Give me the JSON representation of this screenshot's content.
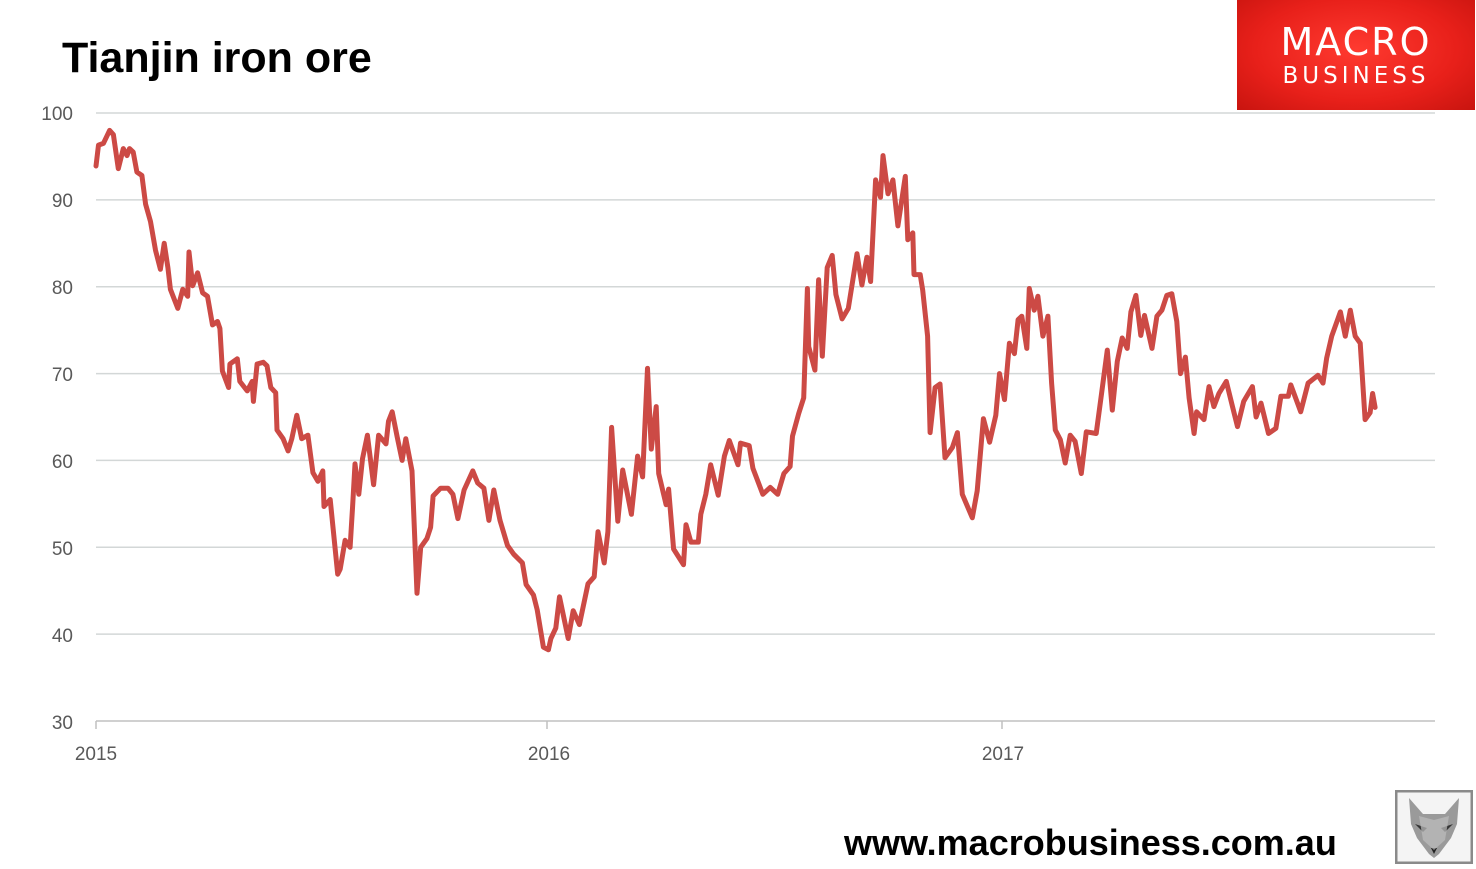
{
  "header": {
    "title": "Tianjin iron ore"
  },
  "logo": {
    "line1": "MACRO",
    "line2": "BUSINESS",
    "color": "#e8201a"
  },
  "footer": {
    "url": "www.macrobusiness.com.au"
  },
  "watermark": {
    "icon": "fox-head-icon"
  },
  "chart_data": {
    "type": "line",
    "title": "Tianjin iron ore",
    "xlabel": "",
    "ylabel": "",
    "ylim": [
      30,
      100
    ],
    "yticks": [
      "100",
      "90",
      "80",
      "70",
      "60",
      "50",
      "40",
      "30"
    ],
    "xticks": [
      "2015",
      "2016",
      "2017"
    ],
    "grid": "horizontal",
    "legend": "none",
    "line_color": "#cc4a45",
    "series": [
      {
        "points": [
          [
            "2015-01-01",
            93.9
          ],
          [
            "2015-01-03",
            96.3
          ],
          [
            "2015-01-07",
            96.5
          ],
          [
            "2015-01-12",
            98
          ],
          [
            "2015-01-15",
            97.5
          ],
          [
            "2015-01-19",
            93.6
          ],
          [
            "2015-01-23",
            95.9
          ],
          [
            "2015-01-26",
            95.1
          ],
          [
            "2015-01-28",
            95.9
          ],
          [
            "2015-01-31",
            95.5
          ],
          [
            "2015-02-03",
            93.2
          ],
          [
            "2015-02-07",
            92.8
          ],
          [
            "2015-02-10",
            89.5
          ],
          [
            "2015-02-14",
            87.5
          ],
          [
            "2015-02-18",
            84.2
          ],
          [
            "2015-02-22",
            82
          ],
          [
            "2015-02-25",
            85
          ],
          [
            "2015-02-28",
            82.2
          ],
          [
            "2015-03-02",
            79.7
          ],
          [
            "2015-03-08",
            77.5
          ],
          [
            "2015-03-12",
            79.7
          ],
          [
            "2015-03-16",
            78.9
          ],
          [
            "2015-03-17",
            84
          ],
          [
            "2015-03-20",
            80.1
          ],
          [
            "2015-03-24",
            81.6
          ],
          [
            "2015-03-28",
            79.3
          ],
          [
            "2015-04-01",
            78.9
          ],
          [
            "2015-04-05",
            75.6
          ],
          [
            "2015-04-09",
            76
          ],
          [
            "2015-04-11",
            75.2
          ],
          [
            "2015-04-13",
            70.3
          ],
          [
            "2015-04-18",
            68.4
          ],
          [
            "2015-04-19",
            71.1
          ],
          [
            "2015-04-25",
            71.7
          ],
          [
            "2015-04-27",
            69.1
          ],
          [
            "2015-05-03",
            68
          ],
          [
            "2015-05-07",
            69.1
          ],
          [
            "2015-05-08",
            66.8
          ],
          [
            "2015-05-11",
            71.1
          ],
          [
            "2015-05-16",
            71.3
          ],
          [
            "2015-05-19",
            70.9
          ],
          [
            "2015-05-22",
            68.4
          ],
          [
            "2015-05-26",
            67.8
          ],
          [
            "2015-05-27",
            63.5
          ],
          [
            "2015-06-01",
            62.5
          ],
          [
            "2015-06-05",
            61.1
          ],
          [
            "2015-06-08",
            62.5
          ],
          [
            "2015-06-12",
            65.2
          ],
          [
            "2015-06-16",
            62.5
          ],
          [
            "2015-06-21",
            62.9
          ],
          [
            "2015-06-25",
            58.6
          ],
          [
            "2015-06-29",
            57.6
          ],
          [
            "2015-07-03",
            58.8
          ],
          [
            "2015-07-04",
            54.7
          ],
          [
            "2015-07-09",
            55.5
          ],
          [
            "2015-07-15",
            46.9
          ],
          [
            "2015-07-17",
            47.5
          ],
          [
            "2015-07-21",
            50.8
          ],
          [
            "2015-07-25",
            50
          ],
          [
            "2015-07-27",
            54.7
          ],
          [
            "2015-07-29",
            59.6
          ],
          [
            "2015-08-01",
            56.1
          ],
          [
            "2015-08-04",
            60.2
          ],
          [
            "2015-08-08",
            62.9
          ],
          [
            "2015-08-13",
            57.2
          ],
          [
            "2015-08-17",
            62.9
          ],
          [
            "2015-08-23",
            61.9
          ],
          [
            "2015-08-25",
            64.5
          ],
          [
            "2015-08-28",
            65.6
          ],
          [
            "2015-09-01",
            62.7
          ],
          [
            "2015-09-05",
            60
          ],
          [
            "2015-09-08",
            62.5
          ],
          [
            "2015-09-13",
            58.8
          ],
          [
            "2015-09-17",
            44.7
          ],
          [
            "2015-09-20",
            50
          ],
          [
            "2015-09-25",
            51
          ],
          [
            "2015-09-28",
            52.3
          ],
          [
            "2015-09-30",
            55.9
          ],
          [
            "2015-10-06",
            56.8
          ],
          [
            "2015-10-12",
            56.8
          ],
          [
            "2015-10-16",
            56.1
          ],
          [
            "2015-10-20",
            53.3
          ],
          [
            "2015-10-25",
            56.6
          ],
          [
            "2015-11-01",
            58.8
          ],
          [
            "2015-11-05",
            57.4
          ],
          [
            "2015-11-10",
            56.8
          ],
          [
            "2015-11-14",
            53.1
          ],
          [
            "2015-11-18",
            56.6
          ],
          [
            "2015-11-23",
            53.1
          ],
          [
            "2015-11-29",
            50.2
          ],
          [
            "2015-12-04",
            49.2
          ],
          [
            "2015-12-11",
            48.2
          ],
          [
            "2015-12-14",
            45.7
          ],
          [
            "2015-12-20",
            44.5
          ],
          [
            "2015-12-23",
            42.8
          ],
          [
            "2015-12-28",
            38.5
          ],
          [
            "2016-01-01",
            38.2
          ],
          [
            "2016-01-03",
            39.5
          ],
          [
            "2016-01-07",
            40.7
          ],
          [
            "2016-01-10",
            44.3
          ],
          [
            "2016-01-17",
            39.5
          ],
          [
            "2016-01-21",
            42.7
          ],
          [
            "2016-01-26",
            41.1
          ],
          [
            "2016-02-02",
            45.8
          ],
          [
            "2016-02-07",
            46.6
          ],
          [
            "2016-02-10",
            51.8
          ],
          [
            "2016-02-15",
            48.2
          ],
          [
            "2016-02-18",
            51.8
          ],
          [
            "2016-02-21",
            63.8
          ],
          [
            "2016-02-26",
            53
          ],
          [
            "2016-03-01",
            58.9
          ],
          [
            "2016-03-08",
            53.8
          ],
          [
            "2016-03-13",
            60.5
          ],
          [
            "2016-03-17",
            58.1
          ],
          [
            "2016-03-21",
            70.6
          ],
          [
            "2016-03-24",
            61.3
          ],
          [
            "2016-03-28",
            66.2
          ],
          [
            "2016-03-30",
            58.5
          ],
          [
            "2016-04-05",
            54.9
          ],
          [
            "2016-04-07",
            56.7
          ],
          [
            "2016-04-11",
            49.8
          ],
          [
            "2016-04-19",
            48
          ],
          [
            "2016-04-21",
            52.6
          ],
          [
            "2016-04-25",
            50.6
          ],
          [
            "2016-05-01",
            50.6
          ],
          [
            "2016-05-03",
            53.8
          ],
          [
            "2016-05-07",
            56.1
          ],
          [
            "2016-05-11",
            59.5
          ],
          [
            "2016-05-17",
            56
          ],
          [
            "2016-05-22",
            60.5
          ],
          [
            "2016-05-26",
            62.3
          ],
          [
            "2016-06-02",
            59.5
          ],
          [
            "2016-06-04",
            62
          ],
          [
            "2016-06-11",
            61.7
          ],
          [
            "2016-06-14",
            59.1
          ],
          [
            "2016-06-22",
            56.1
          ],
          [
            "2016-06-28",
            56.9
          ],
          [
            "2016-07-04",
            56.1
          ],
          [
            "2016-07-09",
            58.5
          ],
          [
            "2016-07-14",
            59.3
          ],
          [
            "2016-07-16",
            62.8
          ],
          [
            "2016-07-21",
            65.4
          ],
          [
            "2016-07-25",
            67.2
          ],
          [
            "2016-07-28",
            79.8
          ],
          [
            "2016-07-29",
            73.1
          ],
          [
            "2016-08-03",
            70.4
          ],
          [
            "2016-08-06",
            80.8
          ],
          [
            "2016-08-09",
            72
          ],
          [
            "2016-08-13",
            82.2
          ],
          [
            "2016-08-17",
            83.6
          ],
          [
            "2016-08-20",
            79.1
          ],
          [
            "2016-08-25",
            76.3
          ],
          [
            "2016-08-30",
            77.5
          ],
          [
            "2016-09-06",
            83.8
          ],
          [
            "2016-09-10",
            80.2
          ],
          [
            "2016-09-14",
            83.4
          ],
          [
            "2016-09-17",
            80.6
          ],
          [
            "2016-09-21",
            92.3
          ],
          [
            "2016-09-25",
            90.3
          ],
          [
            "2016-09-27",
            95.1
          ],
          [
            "2016-10-01",
            90.7
          ],
          [
            "2016-10-05",
            92.3
          ],
          [
            "2016-10-09",
            87
          ],
          [
            "2016-10-15",
            92.7
          ],
          [
            "2016-10-17",
            85.4
          ],
          [
            "2016-10-21",
            86.2
          ],
          [
            "2016-10-22",
            81.4
          ],
          [
            "2016-10-27",
            81.4
          ],
          [
            "2016-10-29",
            79.6
          ],
          [
            "2016-11-02",
            74.3
          ],
          [
            "2016-11-04",
            63.2
          ],
          [
            "2016-11-08",
            68.4
          ],
          [
            "2016-11-12",
            68.8
          ],
          [
            "2016-11-16",
            60.3
          ],
          [
            "2016-11-22",
            61.5
          ],
          [
            "2016-11-26",
            63.2
          ],
          [
            "2016-11-30",
            56.1
          ],
          [
            "2016-12-08",
            53.4
          ],
          [
            "2016-12-12",
            56.5
          ],
          [
            "2016-12-17",
            64.8
          ],
          [
            "2016-12-22",
            62.1
          ],
          [
            "2016-12-27",
            65.2
          ],
          [
            "2016-12-30",
            70
          ],
          [
            "2017-01-03",
            67
          ],
          [
            "2017-01-07",
            73.5
          ],
          [
            "2017-01-11",
            72.3
          ],
          [
            "2017-01-14",
            76.2
          ],
          [
            "2017-01-17",
            76.6
          ],
          [
            "2017-01-21",
            72.9
          ],
          [
            "2017-01-23",
            79.8
          ],
          [
            "2017-01-27",
            77.3
          ],
          [
            "2017-01-30",
            78.9
          ],
          [
            "2017-02-03",
            74.3
          ],
          [
            "2017-02-07",
            76.6
          ],
          [
            "2017-02-10",
            68.9
          ],
          [
            "2017-02-13",
            63.5
          ],
          [
            "2017-02-17",
            62.4
          ],
          [
            "2017-02-21",
            59.7
          ],
          [
            "2017-02-25",
            62.9
          ],
          [
            "2017-03-01",
            62.2
          ],
          [
            "2017-03-06",
            58.5
          ],
          [
            "2017-03-10",
            63.3
          ],
          [
            "2017-03-18",
            63.1
          ],
          [
            "2017-03-22",
            67.4
          ],
          [
            "2017-03-27",
            72.7
          ],
          [
            "2017-03-31",
            65.8
          ],
          [
            "2017-04-04",
            71.4
          ],
          [
            "2017-04-08",
            74.1
          ],
          [
            "2017-04-12",
            72.9
          ],
          [
            "2017-04-15",
            77.1
          ],
          [
            "2017-04-19",
            79
          ],
          [
            "2017-04-23",
            74.4
          ],
          [
            "2017-04-26",
            76.7
          ],
          [
            "2017-05-02",
            72.9
          ],
          [
            "2017-05-06",
            76.6
          ],
          [
            "2017-05-10",
            77.3
          ],
          [
            "2017-05-14",
            79
          ],
          [
            "2017-05-18",
            79.2
          ],
          [
            "2017-05-22",
            76
          ],
          [
            "2017-05-25",
            70
          ],
          [
            "2017-05-29",
            71.9
          ],
          [
            "2017-06-01",
            67.2
          ],
          [
            "2017-06-05",
            63.1
          ],
          [
            "2017-06-07",
            65.6
          ],
          [
            "2017-06-13",
            64.7
          ],
          [
            "2017-06-17",
            68.5
          ],
          [
            "2017-06-21",
            66.2
          ],
          [
            "2017-06-25",
            67.7
          ],
          [
            "2017-07-01",
            69.1
          ],
          [
            "2017-07-06",
            66.2
          ],
          [
            "2017-07-10",
            63.9
          ],
          [
            "2017-07-15",
            66.8
          ],
          [
            "2017-07-22",
            68.5
          ],
          [
            "2017-07-25",
            65
          ],
          [
            "2017-07-29",
            66.6
          ],
          [
            "2017-08-04",
            63.1
          ],
          [
            "2017-08-10",
            63.7
          ],
          [
            "2017-08-14",
            67.4
          ],
          [
            "2017-08-20",
            67.4
          ],
          [
            "2017-08-22",
            68.7
          ],
          [
            "2017-08-30",
            65.6
          ],
          [
            "2017-09-05",
            68.9
          ],
          [
            "2017-09-13",
            69.8
          ],
          [
            "2017-09-17",
            68.9
          ],
          [
            "2017-09-20",
            71.8
          ],
          [
            "2017-09-24",
            74.3
          ],
          [
            "2017-10-01",
            77.1
          ],
          [
            "2017-10-05",
            74.3
          ],
          [
            "2017-10-09",
            77.3
          ],
          [
            "2017-10-13",
            74.3
          ],
          [
            "2017-10-17",
            73.5
          ],
          [
            "2017-10-21",
            64.7
          ],
          [
            "2017-10-25",
            65.5
          ],
          [
            "2017-10-27",
            67.7
          ],
          [
            "2017-10-29",
            66.1
          ]
        ]
      }
    ]
  }
}
